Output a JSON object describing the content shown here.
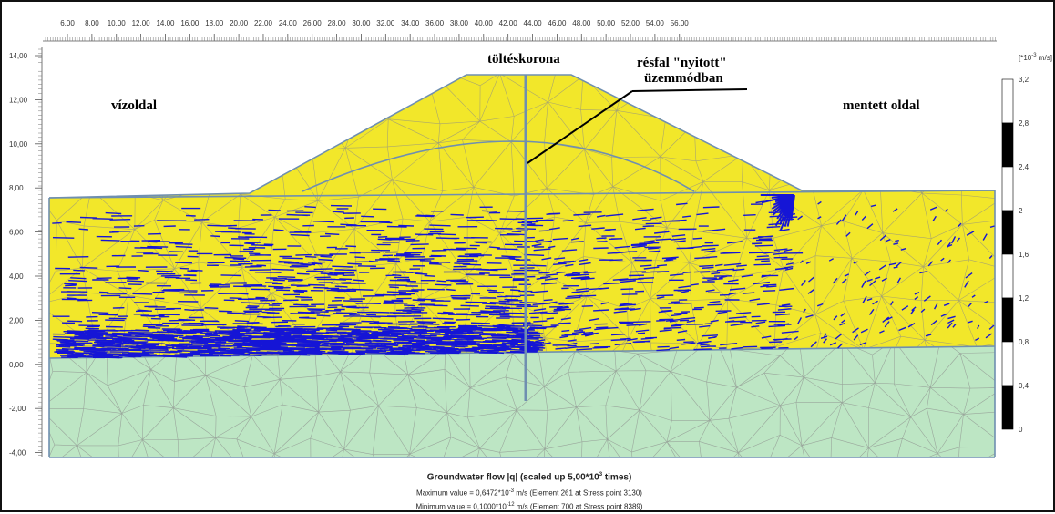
{
  "x_axis": {
    "ticks": [
      "6,00",
      "8,00",
      "10,00",
      "12,00",
      "14,00",
      "16,00",
      "18,00",
      "20,00",
      "22,00",
      "24,00",
      "26,00",
      "28,00",
      "30,00",
      "32,00",
      "34,00",
      "36,00",
      "38,00",
      "40,00",
      "42,00",
      "44,00",
      "46,00",
      "48,00",
      "50,00",
      "52,00",
      "54,00",
      "56,00"
    ]
  },
  "y_axis": {
    "ticks": [
      "14,00",
      "12,00",
      "10,00",
      "8,00",
      "6,00",
      "4,00",
      "2,00",
      "0,00",
      "-2,00",
      "-4,00"
    ]
  },
  "annotations": {
    "water_side": "vízoldal",
    "crest": "töltéskorona",
    "protected_side": "mentett oldal",
    "cutoff_wall_line1": "résfal \"nyitott\"",
    "cutoff_wall_line2": "üzemmódban"
  },
  "legend": {
    "unit_base": "[*10",
    "unit_exp": "-3",
    "unit_tail": " m/s]",
    "labels": [
      "3,2",
      "2,8",
      "2,4",
      "2",
      "1,6",
      "1,2",
      "0,8",
      "0,4",
      "0"
    ]
  },
  "caption": {
    "title_prefix": "Groundwater flow |q| (scaled up 5,00*10",
    "title_exp": "3",
    "title_suffix": " times)",
    "max_prefix": "Maximum value = 0,6472*10",
    "max_exp": "-3",
    "max_suffix": " m/s (Element 261 at Stress point 3130)",
    "min_prefix": "Minimum value = 0,1000*10",
    "min_exp": "-12",
    "min_suffix": " m/s (Element 700 at Stress point 8389)"
  },
  "colors": {
    "embankment": "#f2e72a",
    "subsoil": "#bde6c4",
    "flow_vectors": "#1515d6",
    "mesh_lines": "#8a8a8a",
    "boundary_lines": "#6f8fb0"
  }
}
